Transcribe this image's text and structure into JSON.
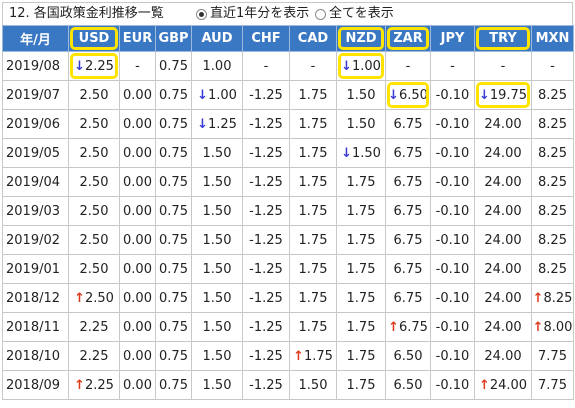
{
  "title": "12. 各国政策金利推移一覧",
  "options": [
    {
      "label": "直近1年分を表示",
      "selected": true
    },
    {
      "label": "全てを表示",
      "selected": false
    }
  ],
  "header": [
    "年/月",
    "USD",
    "EUR",
    "GBP",
    "AUD",
    "CHF",
    "CAD",
    "NZD",
    "ZAR",
    "JPY",
    "TRY",
    "MXN"
  ],
  "rows": [
    {
      "date": "2019/08",
      "cells": [
        {
          "v": "2.25",
          "a": "down",
          "hl": true
        },
        {
          "v": "-"
        },
        {
          "v": "0.75"
        },
        {
          "v": "1.00"
        },
        {
          "v": "-"
        },
        {
          "v": "-"
        },
        {
          "v": "1.00",
          "a": "down",
          "hl": true
        },
        {
          "v": "-"
        },
        {
          "v": "-"
        },
        {
          "v": "-"
        },
        {
          "v": "-"
        }
      ]
    },
    {
      "date": "2019/07",
      "cells": [
        {
          "v": "2.50"
        },
        {
          "v": "0.00"
        },
        {
          "v": "0.75"
        },
        {
          "v": "1.00",
          "a": "down"
        },
        {
          "v": "-1.25"
        },
        {
          "v": "1.75"
        },
        {
          "v": "1.50"
        },
        {
          "v": "6.50",
          "a": "down",
          "hl": true
        },
        {
          "v": "-0.10"
        },
        {
          "v": "19.75",
          "a": "down",
          "hl": true
        },
        {
          "v": "8.25"
        }
      ]
    },
    {
      "date": "2019/06",
      "cells": [
        {
          "v": "2.50"
        },
        {
          "v": "0.00"
        },
        {
          "v": "0.75"
        },
        {
          "v": "1.25",
          "a": "down"
        },
        {
          "v": "-1.25"
        },
        {
          "v": "1.75"
        },
        {
          "v": "1.50"
        },
        {
          "v": "6.75"
        },
        {
          "v": "-0.10"
        },
        {
          "v": "24.00"
        },
        {
          "v": "8.25"
        }
      ]
    },
    {
      "date": "2019/05",
      "cells": [
        {
          "v": "2.50"
        },
        {
          "v": "0.00"
        },
        {
          "v": "0.75"
        },
        {
          "v": "1.50"
        },
        {
          "v": "-1.25"
        },
        {
          "v": "1.75"
        },
        {
          "v": "1.50",
          "a": "down"
        },
        {
          "v": "6.75"
        },
        {
          "v": "-0.10"
        },
        {
          "v": "24.00"
        },
        {
          "v": "8.25"
        }
      ]
    },
    {
      "date": "2019/04",
      "cells": [
        {
          "v": "2.50"
        },
        {
          "v": "0.00"
        },
        {
          "v": "0.75"
        },
        {
          "v": "1.50"
        },
        {
          "v": "-1.25"
        },
        {
          "v": "1.75"
        },
        {
          "v": "1.75"
        },
        {
          "v": "6.75"
        },
        {
          "v": "-0.10"
        },
        {
          "v": "24.00"
        },
        {
          "v": "8.25"
        }
      ]
    },
    {
      "date": "2019/03",
      "cells": [
        {
          "v": "2.50"
        },
        {
          "v": "0.00"
        },
        {
          "v": "0.75"
        },
        {
          "v": "1.50"
        },
        {
          "v": "-1.25"
        },
        {
          "v": "1.75"
        },
        {
          "v": "1.75"
        },
        {
          "v": "6.75"
        },
        {
          "v": "-0.10"
        },
        {
          "v": "24.00"
        },
        {
          "v": "8.25"
        }
      ]
    },
    {
      "date": "2019/02",
      "cells": [
        {
          "v": "2.50"
        },
        {
          "v": "0.00"
        },
        {
          "v": "0.75"
        },
        {
          "v": "1.50"
        },
        {
          "v": "-1.25"
        },
        {
          "v": "1.75"
        },
        {
          "v": "1.75"
        },
        {
          "v": "6.75"
        },
        {
          "v": "-0.10"
        },
        {
          "v": "24.00"
        },
        {
          "v": "8.25"
        }
      ]
    },
    {
      "date": "2019/01",
      "cells": [
        {
          "v": "2.50"
        },
        {
          "v": "0.00"
        },
        {
          "v": "0.75"
        },
        {
          "v": "1.50"
        },
        {
          "v": "-1.25"
        },
        {
          "v": "1.75"
        },
        {
          "v": "1.75"
        },
        {
          "v": "6.75"
        },
        {
          "v": "-0.10"
        },
        {
          "v": "24.00"
        },
        {
          "v": "8.25"
        }
      ]
    },
    {
      "date": "2018/12",
      "cells": [
        {
          "v": "2.50",
          "a": "up"
        },
        {
          "v": "0.00"
        },
        {
          "v": "0.75"
        },
        {
          "v": "1.50"
        },
        {
          "v": "-1.25"
        },
        {
          "v": "1.75"
        },
        {
          "v": "1.75"
        },
        {
          "v": "6.75"
        },
        {
          "v": "-0.10"
        },
        {
          "v": "24.00"
        },
        {
          "v": "8.25",
          "a": "up"
        }
      ]
    },
    {
      "date": "2018/11",
      "cells": [
        {
          "v": "2.25"
        },
        {
          "v": "0.00"
        },
        {
          "v": "0.75"
        },
        {
          "v": "1.50"
        },
        {
          "v": "-1.25"
        },
        {
          "v": "1.75"
        },
        {
          "v": "1.75"
        },
        {
          "v": "6.75",
          "a": "up"
        },
        {
          "v": "-0.10"
        },
        {
          "v": "24.00"
        },
        {
          "v": "8.00",
          "a": "up"
        }
      ]
    },
    {
      "date": "2018/10",
      "cells": [
        {
          "v": "2.25"
        },
        {
          "v": "0.00"
        },
        {
          "v": "0.75"
        },
        {
          "v": "1.50"
        },
        {
          "v": "-1.25"
        },
        {
          "v": "1.75",
          "a": "up"
        },
        {
          "v": "1.75"
        },
        {
          "v": "6.50"
        },
        {
          "v": "-0.10"
        },
        {
          "v": "24.00"
        },
        {
          "v": "7.75"
        }
      ]
    },
    {
      "date": "2018/09",
      "cells": [
        {
          "v": "2.25",
          "a": "up"
        },
        {
          "v": "0.00"
        },
        {
          "v": "0.75"
        },
        {
          "v": "1.50"
        },
        {
          "v": "-1.25"
        },
        {
          "v": "1.50"
        },
        {
          "v": "1.75"
        },
        {
          "v": "6.50"
        },
        {
          "v": "-0.10"
        },
        {
          "v": "24.00",
          "a": "up"
        },
        {
          "v": "7.75"
        }
      ]
    }
  ],
  "highlighted_headers": [
    "USD",
    "NZD",
    "ZAR",
    "TRY"
  ],
  "colors": {
    "header_bg": "#3a78c3",
    "arrow_down": "#3b3bd6",
    "arrow_up": "#e03a1e",
    "highlight": "#ffe400"
  },
  "arrow_glyphs": {
    "down": "↓",
    "up": "↑"
  }
}
